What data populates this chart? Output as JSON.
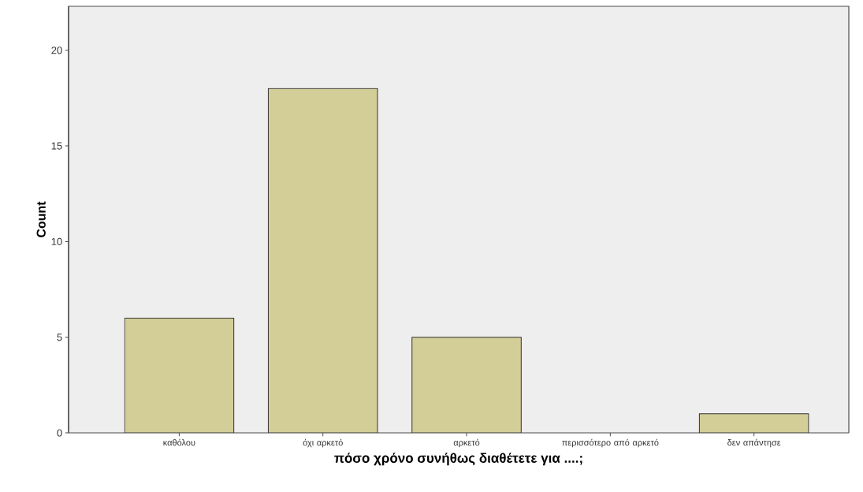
{
  "chart_data": {
    "type": "bar",
    "categories": [
      "καθόλου",
      "όχι αρκετό",
      "αρκετό",
      "περισσότερο από αρκετό",
      "δεν απάντησε"
    ],
    "values": [
      6,
      18,
      5,
      0,
      1
    ],
    "color": "#d3ce98",
    "xlabel": "πόσο χρόνο συνήθως διαθέτετε για ....;",
    "ylabel": "Count",
    "ylim": [
      0,
      22.3
    ],
    "yticks": [
      0,
      5,
      10,
      15,
      20
    ]
  }
}
